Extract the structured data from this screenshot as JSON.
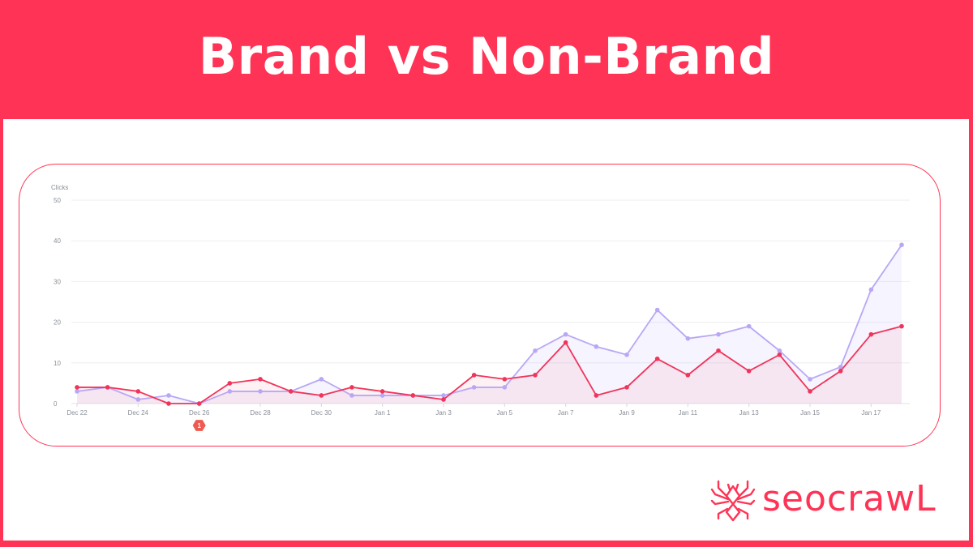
{
  "header": {
    "title": "Brand vs Non-Brand"
  },
  "colors": {
    "brand": "#ff3355",
    "frame": "#ff3355",
    "series_brand": "#f0345a",
    "series_nonbrand": "#b9a7f5",
    "grid": "#eeeef2",
    "axis_text": "#8a8f98"
  },
  "logo": {
    "icon": "spider-icon",
    "text": "seocrawL"
  },
  "annotation": {
    "label": "1",
    "date": "Dec 26"
  },
  "chart_data": {
    "type": "line",
    "title": "",
    "ylabel": "Clicks",
    "xlabel": "",
    "ylim": [
      0,
      50
    ],
    "yticks": [
      0,
      10,
      20,
      30,
      40,
      50
    ],
    "grid": true,
    "legend": "none",
    "x": [
      "Dec 22",
      "Dec 23",
      "Dec 24",
      "Dec 25",
      "Dec 26",
      "Dec 27",
      "Dec 28",
      "Dec 29",
      "Dec 30",
      "Dec 31",
      "Jan 1",
      "Jan 2",
      "Jan 3",
      "Jan 4",
      "Jan 5",
      "Jan 6",
      "Jan 7",
      "Jan 8",
      "Jan 9",
      "Jan 10",
      "Jan 11",
      "Jan 12",
      "Jan 13",
      "Jan 14",
      "Jan 15",
      "Jan 16",
      "Jan 17",
      "Jan 18"
    ],
    "xtick_labels": [
      "Dec 22",
      "Dec 24",
      "Dec 26",
      "Dec 28",
      "Dec 30",
      "Jan 1",
      "Jan 3",
      "Jan 5",
      "Jan 7",
      "Jan 9",
      "Jan 11",
      "Jan 13",
      "Jan 15",
      "Jan 17"
    ],
    "series": [
      {
        "name": "Non-Brand (purple)",
        "color": "#b9a7f5",
        "values": [
          3,
          4,
          1,
          2,
          0,
          3,
          3,
          3,
          6,
          2,
          2,
          2,
          2,
          4,
          4,
          13,
          17,
          14,
          12,
          23,
          16,
          17,
          19,
          13,
          6,
          9,
          28,
          39
        ]
      },
      {
        "name": "Brand (red)",
        "color": "#f0345a",
        "values": [
          4,
          4,
          3,
          0,
          0,
          5,
          6,
          3,
          2,
          4,
          3,
          2,
          1,
          7,
          6,
          7,
          15,
          2,
          4,
          11,
          7,
          13,
          8,
          12,
          3,
          8,
          17,
          19
        ]
      }
    ],
    "annotations": [
      {
        "x": "Dec 26",
        "label": "1"
      }
    ]
  }
}
